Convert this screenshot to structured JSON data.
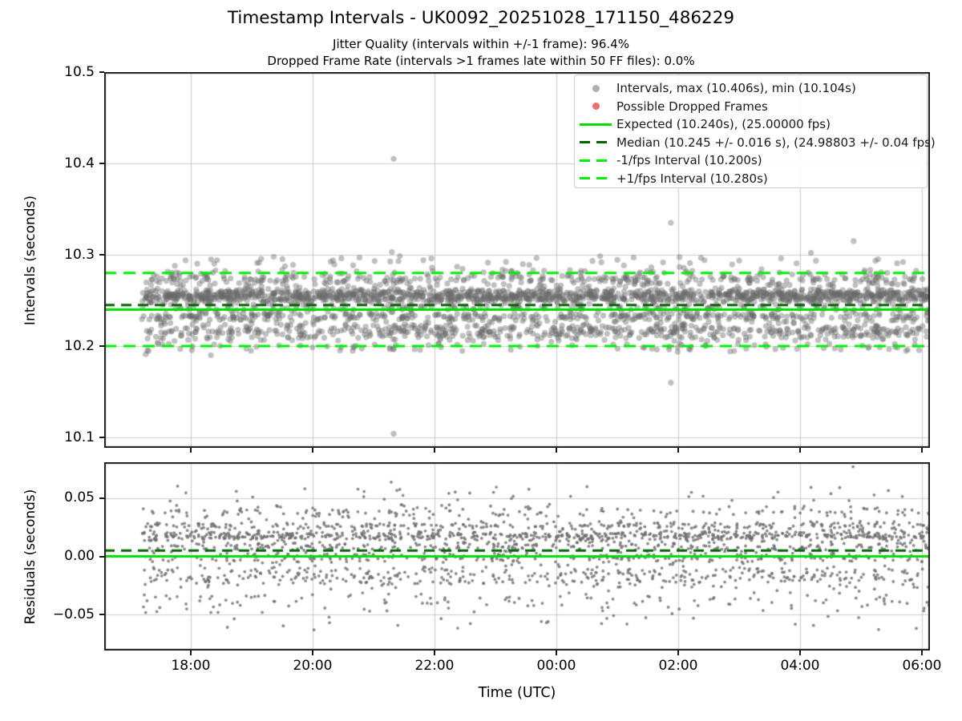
{
  "title": "Timestamp Intervals - UK0092_20251028_171150_486229",
  "subtitle1": "Jitter Quality (intervals within +/-1 frame): 96.4%",
  "subtitle2": "Dropped Frame Rate (intervals >1 frames late within 50 FF files): 0.0%",
  "xlabel": "Time (UTC)",
  "colors": {
    "grid": "#cccccc",
    "frame": "#1a1a1a",
    "lime_solid": "#00dd00",
    "lime_dashed": "#00ef00",
    "dark_green": "#006400",
    "scatter_gray": "#808080",
    "dropped_red": "#f26d6d"
  },
  "legend": {
    "items": [
      {
        "type": "marker",
        "color": "#b0b0b0",
        "label": "Intervals, max (10.406s), min (10.104s)"
      },
      {
        "type": "marker",
        "color": "#f26d6d",
        "label": "Possible Dropped Frames"
      },
      {
        "type": "line",
        "style": "solid",
        "color": "#00dd00",
        "label": "Expected (10.240s), (25.00000 fps)"
      },
      {
        "type": "line",
        "style": "dashed",
        "color": "#006400",
        "label": "Median (10.245 +/- 0.016 s), (24.98803 +/- 0.04 fps)"
      },
      {
        "type": "line",
        "style": "dashed",
        "color": "#00ef00",
        "label": "-1/fps Interval (10.200s)"
      },
      {
        "type": "line",
        "style": "dashed",
        "color": "#00ef00",
        "label": "+1/fps Interval (10.280s)"
      }
    ]
  },
  "chart_data": [
    {
      "type": "scatter",
      "name": "intervals",
      "ylabel": "Intervals (seconds)",
      "ylim": [
        10.0886,
        10.5
      ],
      "yticks": [
        {
          "label": "10.5",
          "value": 10.5
        },
        {
          "label": "10.4",
          "value": 10.4
        },
        {
          "label": "10.3",
          "value": 10.3
        },
        {
          "label": "10.2",
          "value": 10.2
        },
        {
          "label": "10.1",
          "value": 10.1
        }
      ],
      "xlim_hours": [
        16.579,
        30.132
      ],
      "x_data_range_hours": [
        17.197,
        30.13
      ],
      "xticks": [
        {
          "label": "18:00",
          "hour": 18
        },
        {
          "label": "20:00",
          "hour": 20
        },
        {
          "label": "22:00",
          "hour": 22
        },
        {
          "label": "00:00",
          "hour": 24
        },
        {
          "label": "02:00",
          "hour": 26
        },
        {
          "label": "04:00",
          "hour": 28
        },
        {
          "label": "06:00",
          "hour": 30
        }
      ],
      "show_xtick_labels": false,
      "grid": true,
      "stats": {
        "max_s": 10.406,
        "min_s": 10.104,
        "expected_s": 10.24,
        "expected_fps": "25.00000",
        "median_s": 10.245,
        "median_pm_s": 0.016,
        "median_fps": 24.98803,
        "median_pm_fps": 0.04,
        "jitter_quality_pct": 96.4,
        "dropped_frame_rate_pct": 0.0,
        "ff_files": 50
      },
      "n_rendered": 3000,
      "density_bands": [
        {
          "weight": 0.02,
          "ymin": 10.282,
          "ymax": 10.301
        },
        {
          "weight": 0.125,
          "ymin": 10.262,
          "ymax": 10.285
        },
        {
          "weight": 0.46,
          "ymin": 10.2455,
          "ymax": 10.2645
        },
        {
          "weight": 0.045,
          "ymin": 10.2375,
          "ymax": 10.2465
        },
        {
          "weight": 0.13,
          "ymin": 10.226,
          "ymax": 10.2385
        },
        {
          "weight": 0.195,
          "ymin": 10.2045,
          "ymax": 10.2275
        },
        {
          "weight": 0.025,
          "ymin": 10.193,
          "ymax": 10.2055
        }
      ],
      "outliers": [
        [
          21.33,
          10.405
        ],
        [
          21.3,
          10.303
        ],
        [
          21.33,
          10.104
        ],
        [
          25.88,
          10.335
        ],
        [
          25.88,
          10.16
        ],
        [
          28.88,
          10.315
        ],
        [
          28.18,
          10.302
        ],
        [
          17.26,
          10.191
        ],
        [
          18.33,
          10.19
        ]
      ],
      "ref_lines": [
        {
          "name": "+1/fps",
          "value": 10.28,
          "color": "#00ef00",
          "dash": [
            15,
            9
          ],
          "width": 3
        },
        {
          "name": "median",
          "value": 10.245,
          "color": "#006400",
          "dash": [
            13,
            8
          ],
          "width": 3
        },
        {
          "name": "expected",
          "value": 10.24,
          "color": "#00dd00",
          "dash": [],
          "width": 3
        },
        {
          "name": "-1/fps",
          "value": 10.2,
          "color": "#00ef00",
          "dash": [
            15,
            9
          ],
          "width": 3
        }
      ],
      "marker": {
        "radius": 3.6,
        "fill": "rgba(105,105,105,0.42)"
      }
    },
    {
      "type": "scatter",
      "name": "residuals",
      "ylabel": "Residuals (seconds)",
      "xlabel": "Time (UTC)",
      "ylim": [
        -0.0805,
        0.0805
      ],
      "yticks": [
        {
          "label": "0.05",
          "value": 0.05
        },
        {
          "label": "0.00",
          "value": 0.0
        },
        {
          "label": "−0.05",
          "value": -0.05
        }
      ],
      "xlim_hours": [
        16.579,
        30.132
      ],
      "x_data_range_hours": [
        17.197,
        30.13
      ],
      "xticks": [
        {
          "label": "18:00",
          "hour": 18
        },
        {
          "label": "20:00",
          "hour": 20
        },
        {
          "label": "22:00",
          "hour": 22
        },
        {
          "label": "00:00",
          "hour": 24
        },
        {
          "label": "02:00",
          "hour": 26
        },
        {
          "label": "04:00",
          "hour": 28
        },
        {
          "label": "06:00",
          "hour": 30
        }
      ],
      "show_xtick_labels": true,
      "grid": true,
      "n_rendered": 2300,
      "density_bands": [
        {
          "weight": 0.013,
          "ymin": 0.045,
          "ymax": 0.062
        },
        {
          "weight": 0.085,
          "ymin": 0.03,
          "ymax": 0.0455
        },
        {
          "weight": 0.125,
          "ymin": 0.0215,
          "ymax": 0.0305
        },
        {
          "weight": 0.31,
          "ymin": 0.0125,
          "ymax": 0.0225
        },
        {
          "weight": 0.12,
          "ymin": 0.0035,
          "ymax": 0.0135
        },
        {
          "weight": 0.11,
          "ymin": -0.0065,
          "ymax": 0.0045
        },
        {
          "weight": 0.18,
          "ymin": -0.0285,
          "ymax": -0.0055
        },
        {
          "weight": 0.047,
          "ymin": -0.0485,
          "ymax": -0.028
        },
        {
          "weight": 0.01,
          "ymin": -0.066,
          "ymax": -0.048
        }
      ],
      "outliers": [
        [
          21.29,
          0.0635
        ],
        [
          28.87,
          0.0766
        ],
        [
          28.18,
          0.059
        ],
        [
          17.26,
          -0.048
        ],
        [
          18.33,
          -0.048
        ],
        [
          25.9,
          -0.049
        ]
      ],
      "ref_lines": [
        {
          "name": "median-residual",
          "value": 0.005,
          "color": "#006400",
          "dash": [
            13,
            8
          ],
          "width": 3
        },
        {
          "name": "zero",
          "value": 0.0,
          "color": "#00dd00",
          "dash": [],
          "width": 3
        }
      ],
      "marker": {
        "radius": 1.9,
        "fill": "rgba(110,110,110,0.8)"
      }
    }
  ]
}
